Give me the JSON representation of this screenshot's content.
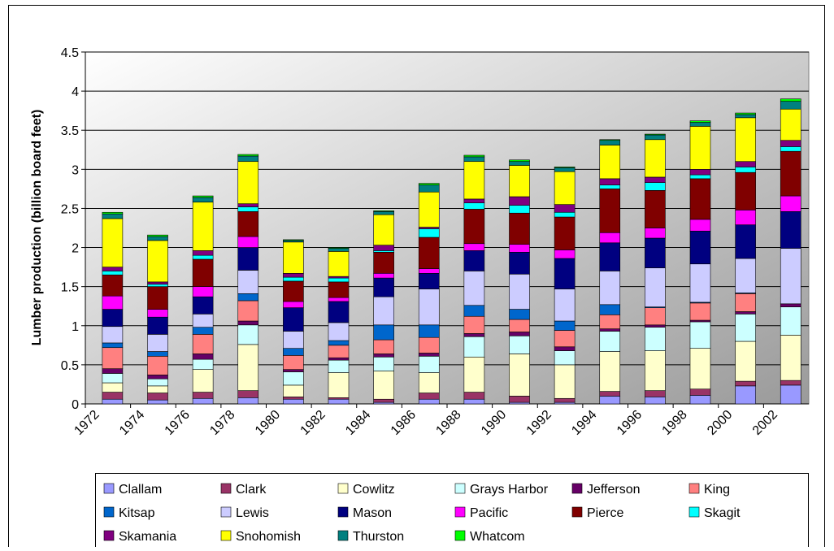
{
  "chart_data": {
    "type": "stacked_bar",
    "y_label": "Lumber production (billion board feet)",
    "categories": [
      "1972",
      "1974",
      "1976",
      "1978",
      "1980",
      "1982",
      "1984",
      "1986",
      "1988",
      "1990",
      "1992",
      "1994",
      "1996",
      "1998",
      "2000",
      "2002"
    ],
    "ylim": [
      0,
      4.5
    ],
    "yticks": [
      0,
      0.5,
      1,
      1.5,
      2,
      2.5,
      3,
      3.5,
      4,
      4.5
    ],
    "grid": true,
    "series": [
      {
        "name": "Clallam",
        "color": "#9999ff",
        "values": [
          0.06,
          0.05,
          0.07,
          0.08,
          0.06,
          0.06,
          0.02,
          0.06,
          0.06,
          0.02,
          0.02,
          0.1,
          0.09,
          0.11,
          0.23,
          0.24
        ]
      },
      {
        "name": "Clark",
        "color": "#993366",
        "values": [
          0.09,
          0.09,
          0.08,
          0.09,
          0.03,
          0.02,
          0.04,
          0.08,
          0.09,
          0.08,
          0.05,
          0.06,
          0.08,
          0.08,
          0.06,
          0.06
        ]
      },
      {
        "name": "Cowlitz",
        "color": "#ffffcc",
        "values": [
          0.12,
          0.09,
          0.29,
          0.59,
          0.15,
          0.32,
          0.36,
          0.26,
          0.45,
          0.54,
          0.43,
          0.51,
          0.51,
          0.52,
          0.51,
          0.58
        ]
      },
      {
        "name": "Grays Harbor",
        "color": "#ccffff",
        "values": [
          0.12,
          0.09,
          0.13,
          0.25,
          0.17,
          0.16,
          0.18,
          0.21,
          0.26,
          0.23,
          0.18,
          0.26,
          0.3,
          0.34,
          0.35,
          0.36
        ]
      },
      {
        "name": "Jefferson",
        "color": "#660066",
        "values": [
          0.06,
          0.05,
          0.07,
          0.05,
          0.03,
          0.03,
          0.04,
          0.04,
          0.04,
          0.05,
          0.05,
          0.03,
          0.03,
          0.02,
          0.03,
          0.04
        ]
      },
      {
        "name": "King",
        "color": "#ff8080",
        "values": [
          0.27,
          0.24,
          0.25,
          0.26,
          0.18,
          0.16,
          0.18,
          0.2,
          0.22,
          0.16,
          0.21,
          0.18,
          0.22,
          0.22,
          0.23,
          0.0
        ]
      },
      {
        "name": "Kitsap",
        "color": "#0066cc",
        "values": [
          0.06,
          0.06,
          0.09,
          0.09,
          0.09,
          0.06,
          0.19,
          0.16,
          0.14,
          0.13,
          0.12,
          0.13,
          0.01,
          0.01,
          0.01,
          0.0
        ]
      },
      {
        "name": "Lewis",
        "color": "#ccccff",
        "values": [
          0.21,
          0.22,
          0.17,
          0.3,
          0.22,
          0.23,
          0.36,
          0.46,
          0.44,
          0.45,
          0.41,
          0.43,
          0.5,
          0.49,
          0.44,
          0.71
        ]
      },
      {
        "name": "Mason",
        "color": "#000080",
        "values": [
          0.22,
          0.22,
          0.22,
          0.29,
          0.3,
          0.27,
          0.24,
          0.2,
          0.26,
          0.28,
          0.39,
          0.36,
          0.38,
          0.42,
          0.43,
          0.47
        ]
      },
      {
        "name": "Pacific",
        "color": "#ff00ff",
        "values": [
          0.17,
          0.1,
          0.13,
          0.14,
          0.08,
          0.05,
          0.06,
          0.06,
          0.09,
          0.1,
          0.11,
          0.13,
          0.13,
          0.15,
          0.19,
          0.2
        ]
      },
      {
        "name": "Pierce",
        "color": "#800000",
        "values": [
          0.27,
          0.29,
          0.35,
          0.32,
          0.26,
          0.2,
          0.27,
          0.4,
          0.44,
          0.4,
          0.42,
          0.56,
          0.48,
          0.52,
          0.48,
          0.57
        ]
      },
      {
        "name": "Skagit",
        "color": "#00ffff",
        "values": [
          0.05,
          0.03,
          0.05,
          0.06,
          0.05,
          0.05,
          0.02,
          0.11,
          0.08,
          0.1,
          0.06,
          0.05,
          0.1,
          0.05,
          0.07,
          0.06
        ]
      },
      {
        "name": "Skamania",
        "color": "#800080",
        "values": [
          0.05,
          0.03,
          0.06,
          0.04,
          0.05,
          0.02,
          0.07,
          0.02,
          0.05,
          0.11,
          0.1,
          0.08,
          0.07,
          0.07,
          0.07,
          0.08
        ]
      },
      {
        "name": "Snohomish",
        "color": "#ffff00",
        "values": [
          0.62,
          0.53,
          0.62,
          0.54,
          0.4,
          0.32,
          0.39,
          0.45,
          0.48,
          0.4,
          0.42,
          0.43,
          0.48,
          0.55,
          0.56,
          0.4
        ]
      },
      {
        "name": "Thurston",
        "color": "#008080",
        "values": [
          0.06,
          0.05,
          0.06,
          0.07,
          0.02,
          0.04,
          0.04,
          0.09,
          0.06,
          0.05,
          0.05,
          0.06,
          0.06,
          0.05,
          0.04,
          0.1
        ]
      },
      {
        "name": "Whatcom",
        "color": "#00ff00",
        "values": [
          0.02,
          0.02,
          0.02,
          0.02,
          0.01,
          0.01,
          0.01,
          0.02,
          0.02,
          0.02,
          0.01,
          0.01,
          0.01,
          0.02,
          0.02,
          0.03
        ]
      }
    ]
  }
}
